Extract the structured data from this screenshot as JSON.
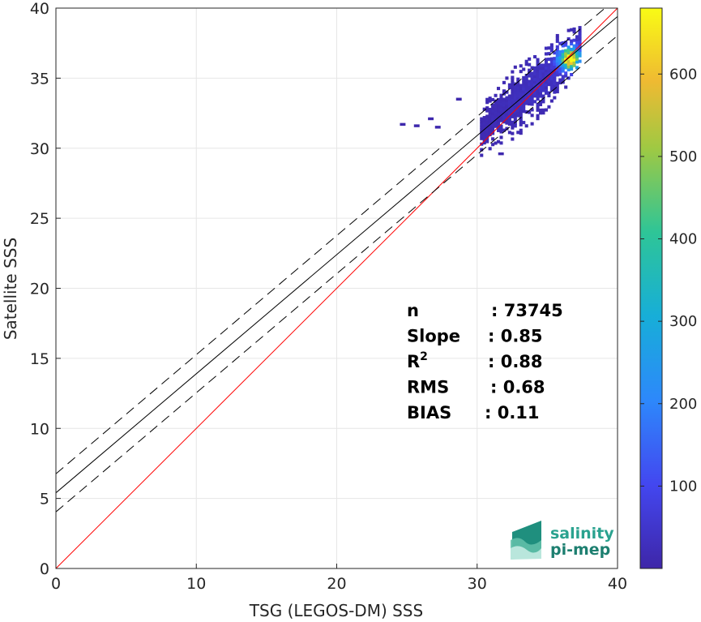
{
  "chart_data": {
    "type": "scatter",
    "subtype": "density-scatter (2D histogram)",
    "xlabel": "TSG (LEGOS-DM) SSS",
    "ylabel": "Satellite SSS",
    "xlim": [
      0,
      40
    ],
    "ylim": [
      0,
      40
    ],
    "xticks": [
      0,
      10,
      20,
      30,
      40
    ],
    "yticks": [
      0,
      5,
      10,
      15,
      20,
      25,
      30,
      35,
      40
    ],
    "grid": true,
    "colormap": "parula",
    "colorbar": {
      "min": 0,
      "max": 680,
      "ticks": [
        100,
        200,
        300,
        400,
        500,
        600
      ]
    },
    "lines": [
      {
        "name": "identity",
        "color": "#ff0000",
        "style": "solid",
        "x": [
          0,
          40
        ],
        "y": [
          0,
          40
        ]
      },
      {
        "name": "regression",
        "color": "#000000",
        "style": "solid",
        "x": [
          0,
          40
        ],
        "y": [
          5.4,
          39.4
        ]
      },
      {
        "name": "regression-upper",
        "color": "#000000",
        "style": "dashed",
        "x": [
          0,
          40
        ],
        "y": [
          6.76,
          40.76
        ]
      },
      {
        "name": "regression-lower",
        "color": "#000000",
        "style": "dashed",
        "x": [
          0,
          40
        ],
        "y": [
          4.04,
          38.04
        ]
      }
    ],
    "density": {
      "ridge_x_range": [
        30.2,
        37.4
      ],
      "peak": [
        36.5,
        36.3
      ],
      "peak_count": 680,
      "outliers": [
        [
          24.5,
          31.6
        ],
        [
          27.0,
          31.4
        ],
        [
          28.5,
          33.4
        ],
        [
          26.5,
          32.0
        ],
        [
          25.5,
          31.5
        ],
        [
          31.5,
          29.5
        ]
      ]
    },
    "stats": [
      {
        "label": "n",
        "value": ": 73745"
      },
      {
        "label": "Slope",
        "value": ": 0.85"
      },
      {
        "label": "R",
        "sup": "2",
        "value": ": 0.88"
      },
      {
        "label": "RMS",
        "value": ": 0.68"
      },
      {
        "label": "BIAS",
        "value": ": 0.11"
      }
    ]
  },
  "logo": {
    "line1": "salinity",
    "line2": "pi-mep"
  },
  "colors": {
    "identity": "#ff0000",
    "regression": "#000000",
    "grid": "#e6e6e6",
    "logo": "#2aa28f"
  }
}
